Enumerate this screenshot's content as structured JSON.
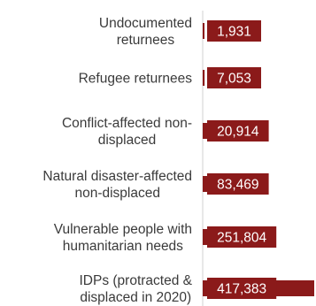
{
  "chart_data": {
    "type": "bar",
    "orientation": "horizontal",
    "categories": [
      [
        "Undocumented",
        "returnees"
      ],
      [
        "Refugee returnees"
      ],
      [
        "Conflict-affected non-",
        "displaced"
      ],
      [
        "Natural disaster-affected",
        "non-displaced"
      ],
      [
        "Vulnerable people with",
        "humanitarian needs"
      ],
      [
        "IDPs (protracted &",
        "displaced in 2020)"
      ]
    ],
    "values": [
      1931,
      7053,
      20914,
      83469,
      251804,
      417383
    ],
    "data_labels": [
      "1,931",
      "7,053",
      "20,914",
      "83,469",
      "251,804",
      "417,383"
    ],
    "title": "",
    "xlabel": "",
    "ylabel": "",
    "xlim": [
      0,
      417383
    ],
    "grid": false,
    "legend": "none",
    "colors": {
      "bar": "#8b1a1a",
      "label_box": "#8b1a1a",
      "label_text": "#ffffff",
      "category_text": "#3a3a3a",
      "axis_line": "#d0d0d0"
    }
  }
}
